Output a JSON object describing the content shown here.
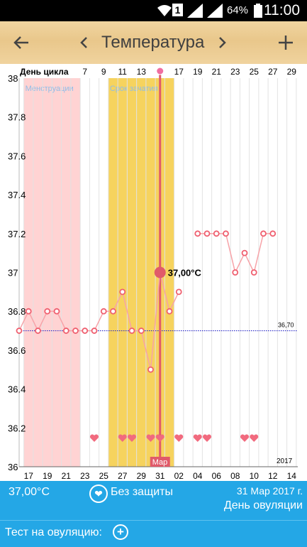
{
  "status_bar": {
    "signal_label": "1",
    "battery": "64%",
    "time": "11:00"
  },
  "toolbar": {
    "back_icon": "arrow-left",
    "prev_icon": "chevron-left",
    "title": "Температура",
    "next_icon": "chevron-right",
    "add_icon": "plus"
  },
  "chart_data": {
    "type": "line",
    "xlabel": "День цикла",
    "top_ticks": [
      "7",
      "9",
      "11",
      "13",
      "",
      "17",
      "19",
      "21",
      "23",
      "25",
      "27",
      "29"
    ],
    "bottom_ticks": [
      "17",
      "19",
      "21",
      "23",
      "25",
      "27",
      "29",
      "31",
      "02",
      "04",
      "06",
      "08",
      "10",
      "12",
      "14"
    ],
    "month_label": "Мар",
    "year_label": "2017",
    "ylim": [
      36,
      38
    ],
    "yticks": [
      "38",
      "37.8",
      "37.6",
      "37.4",
      "37.2",
      "37",
      "36.8",
      "36.6",
      "36.4",
      "36.2",
      "36"
    ],
    "baseline": {
      "value": 36.7,
      "label": "36,70"
    },
    "bands": [
      {
        "label": "Менструации",
        "start": 1,
        "end": 6,
        "color": "#ffd3d3"
      },
      {
        "label": "Срок зачатия",
        "start": 10,
        "end": 16,
        "color": "#f6d35e"
      }
    ],
    "series": [
      {
        "x": [
          0,
          1,
          2,
          3,
          4,
          5,
          6,
          7,
          8,
          9,
          10,
          11,
          12,
          13,
          14,
          15,
          16,
          17,
          18,
          19,
          20,
          21,
          22,
          23,
          24,
          25,
          26,
          27,
          28
        ],
        "values": [
          36.7,
          36.8,
          36.7,
          36.8,
          36.8,
          36.7,
          36.7,
          36.7,
          36.7,
          36.8,
          36.8,
          36.9,
          36.7,
          36.7,
          36.5,
          37.0,
          36.8,
          36.9,
          null,
          37.2,
          37.2,
          37.2,
          37.2,
          37.0,
          37.1,
          37.0,
          37.2,
          37.2,
          null
        ]
      }
    ],
    "selected": {
      "x": 15,
      "value": 37.0,
      "label": "37,00°C"
    },
    "intercourse_days": [
      8,
      11,
      12,
      14,
      15,
      17,
      19,
      20,
      24,
      25
    ]
  },
  "info": {
    "temperature": "37,00°C",
    "protection": "Без защиты",
    "date": "31 Мар 2017 г.",
    "phase": "День овуляции"
  },
  "ovulation_test": {
    "label": "Тест на овуляцию:"
  }
}
